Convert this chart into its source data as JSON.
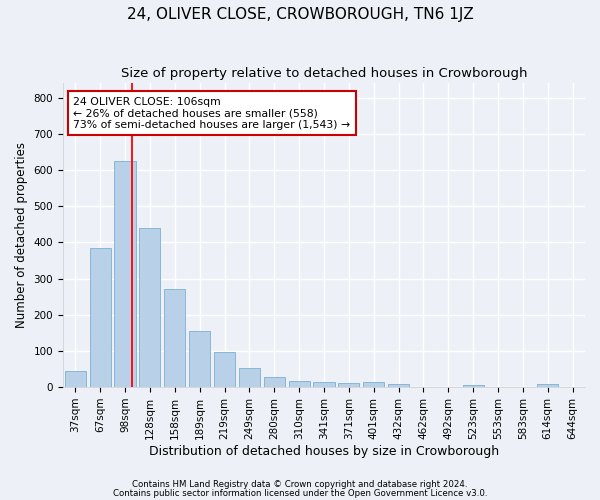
{
  "title": "24, OLIVER CLOSE, CROWBOROUGH, TN6 1JZ",
  "subtitle": "Size of property relative to detached houses in Crowborough",
  "xlabel": "Distribution of detached houses by size in Crowborough",
  "ylabel": "Number of detached properties",
  "categories": [
    "37sqm",
    "67sqm",
    "98sqm",
    "128sqm",
    "158sqm",
    "189sqm",
    "219sqm",
    "249sqm",
    "280sqm",
    "310sqm",
    "341sqm",
    "371sqm",
    "401sqm",
    "432sqm",
    "462sqm",
    "492sqm",
    "523sqm",
    "553sqm",
    "583sqm",
    "614sqm",
    "644sqm"
  ],
  "values": [
    45,
    385,
    625,
    440,
    270,
    155,
    96,
    52,
    29,
    18,
    15,
    12,
    14,
    8,
    0,
    0,
    7,
    0,
    0,
    8,
    0
  ],
  "bar_color": "#b8d0e8",
  "bar_edgecolor": "#7aafd4",
  "annotation_text": "24 OLIVER CLOSE: 106sqm\n← 26% of detached houses are smaller (558)\n73% of semi-detached houses are larger (1,543) →",
  "annotation_box_color": "#ffffff",
  "annotation_box_edgecolor": "#cc0000",
  "footer1": "Contains HM Land Registry data © Crown copyright and database right 2024.",
  "footer2": "Contains public sector information licensed under the Open Government Licence v3.0.",
  "ylim": [
    0,
    840
  ],
  "yticks": [
    0,
    100,
    200,
    300,
    400,
    500,
    600,
    700,
    800
  ],
  "background_color": "#edf1f7",
  "grid_color": "#ffffff",
  "title_fontsize": 11,
  "subtitle_fontsize": 9.5,
  "ylabel_fontsize": 8.5,
  "xlabel_fontsize": 9,
  "tick_fontsize": 7.5,
  "annotation_fontsize": 7.8,
  "footer_fontsize": 6.2
}
